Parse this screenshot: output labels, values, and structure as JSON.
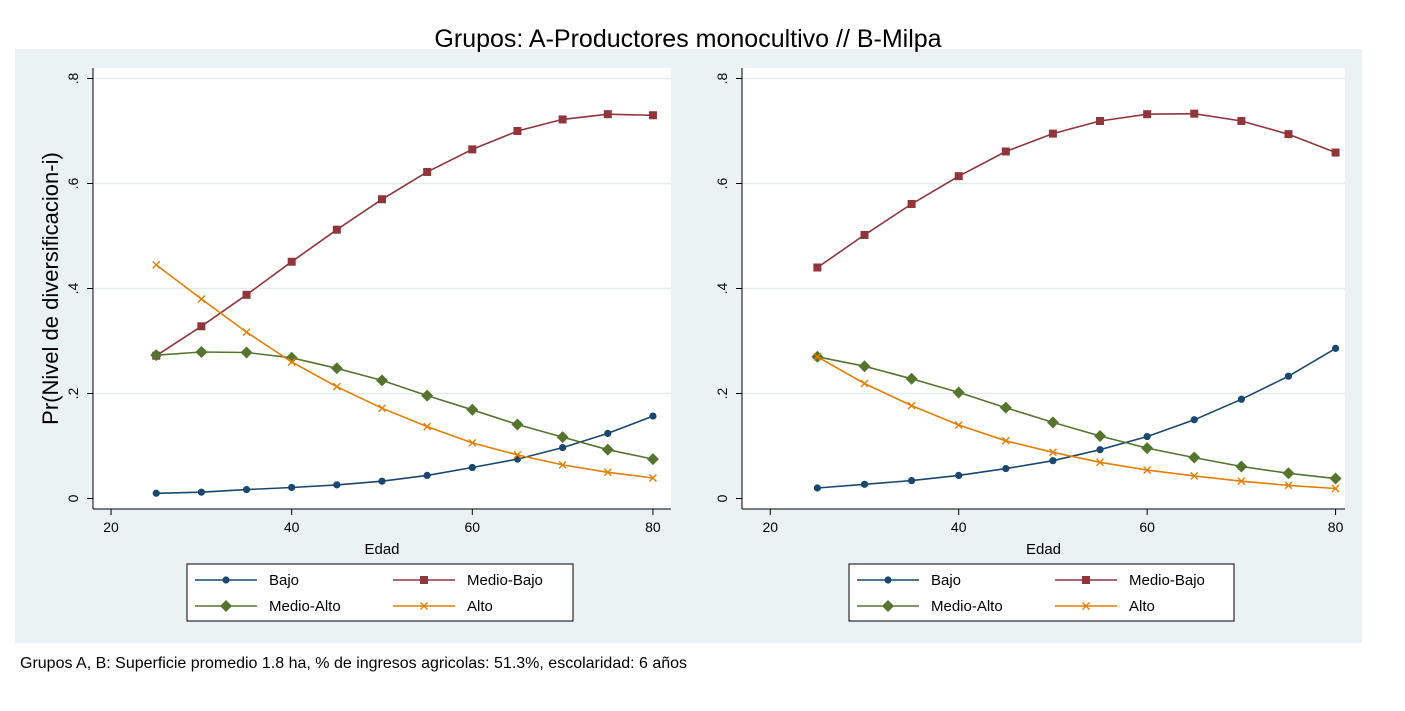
{
  "figure": {
    "title": "Grupos: A-Productores monocultivo // B-Milpa",
    "note": "Grupos A, B: Superficie promedio 1.8 ha, % de ingresos agricolas: 51.3%, escolaridad: 6 años",
    "colors": {
      "outer_bg": "#eaf2f3",
      "plot_bg": "#ffffff",
      "grid": "#e3ebed",
      "Bajo": "#1a476f",
      "Medio-Bajo": "#90353b",
      "Medio-Alto": "#55752f",
      "Alto": "#e37e00"
    },
    "series_markers": {
      "Bajo": "circle",
      "Medio-Bajo": "square",
      "Medio-Alto": "diamond",
      "Alto": "x"
    }
  },
  "chart_data": [
    {
      "type": "line",
      "title": "",
      "xlabel": "Edad",
      "ylabel": "Pr(Nivel de diversificacion-i)",
      "xlim": [
        18,
        82
      ],
      "ylim": [
        -0.02,
        0.82
      ],
      "xticks": [
        "20",
        "40",
        "60",
        "80"
      ],
      "xtick_values": [
        20,
        40,
        60,
        80
      ],
      "yticks": [
        "0",
        ".2",
        ".4",
        ".6",
        ".8"
      ],
      "ytick_values": [
        0,
        0.2,
        0.4,
        0.6,
        0.8
      ],
      "grid": true,
      "legend_position": "bottom",
      "x": [
        25,
        30,
        35,
        40,
        45,
        50,
        55,
        60,
        65,
        70,
        75,
        80
      ],
      "series": [
        {
          "name": "Bajo",
          "values": [
            0.01,
            0.012,
            0.017,
            0.021,
            0.026,
            0.033,
            0.044,
            0.059,
            0.075,
            0.097,
            0.124,
            0.157
          ]
        },
        {
          "name": "Medio-Bajo",
          "values": [
            0.272,
            0.328,
            0.388,
            0.451,
            0.512,
            0.57,
            0.622,
            0.665,
            0.7,
            0.722,
            0.732,
            0.73
          ]
        },
        {
          "name": "Medio-Alto",
          "values": [
            0.273,
            0.279,
            0.278,
            0.268,
            0.248,
            0.225,
            0.196,
            0.169,
            0.141,
            0.117,
            0.093,
            0.075
          ]
        },
        {
          "name": "Alto",
          "values": [
            0.445,
            0.38,
            0.317,
            0.26,
            0.213,
            0.172,
            0.137,
            0.106,
            0.083,
            0.064,
            0.05,
            0.039
          ]
        }
      ]
    },
    {
      "type": "line",
      "title": "",
      "xlabel": "Edad",
      "ylabel": "",
      "xlim": [
        17,
        81
      ],
      "ylim": [
        -0.02,
        0.82
      ],
      "xticks": [
        "20",
        "40",
        "60",
        "80"
      ],
      "xtick_values": [
        20,
        40,
        60,
        80
      ],
      "yticks": [
        "0",
        ".2",
        ".4",
        ".6",
        ".8"
      ],
      "ytick_values": [
        0,
        0.2,
        0.4,
        0.6,
        0.8
      ],
      "grid": true,
      "legend_position": "bottom",
      "x": [
        25,
        30,
        35,
        40,
        45,
        50,
        55,
        60,
        65,
        70,
        75,
        80
      ],
      "series": [
        {
          "name": "Bajo",
          "values": [
            0.02,
            0.027,
            0.034,
            0.044,
            0.057,
            0.072,
            0.093,
            0.118,
            0.15,
            0.189,
            0.233,
            0.286
          ]
        },
        {
          "name": "Medio-Bajo",
          "values": [
            0.44,
            0.502,
            0.561,
            0.614,
            0.661,
            0.695,
            0.719,
            0.732,
            0.733,
            0.719,
            0.694,
            0.659
          ]
        },
        {
          "name": "Medio-Alto",
          "values": [
            0.27,
            0.252,
            0.228,
            0.202,
            0.173,
            0.145,
            0.119,
            0.096,
            0.078,
            0.061,
            0.048,
            0.038
          ]
        },
        {
          "name": "Alto",
          "values": [
            0.27,
            0.219,
            0.177,
            0.14,
            0.11,
            0.088,
            0.069,
            0.054,
            0.043,
            0.033,
            0.025,
            0.019
          ]
        }
      ]
    }
  ]
}
